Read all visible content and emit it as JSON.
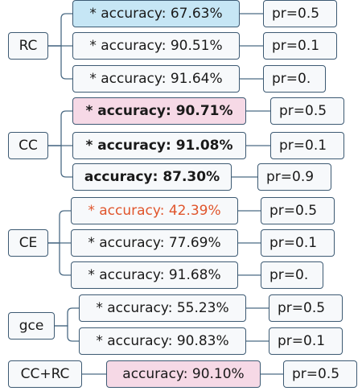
{
  "groups": [
    {
      "name": "RC",
      "items": [
        {
          "acc": "* accuracy: 67.63%",
          "pr": "pr=0.5",
          "bg": "blue"
        },
        {
          "acc": "* accuracy: 90.51%",
          "pr": "pr=0.1"
        },
        {
          "acc": "* accuracy: 91.64%",
          "pr": "pr=0."
        }
      ]
    },
    {
      "name": "CC",
      "items": [
        {
          "acc": "* accuracy: 90.71%",
          "pr": "pr=0.5",
          "bold": true,
          "bg": "pink"
        },
        {
          "acc": "* accuracy: 91.08%",
          "pr": "pr=0.1",
          "bold": true
        },
        {
          "acc": "accuracy: 87.30%",
          "pr": "pr=0.9",
          "bold": true
        }
      ]
    },
    {
      "name": "CE",
      "items": [
        {
          "acc": "* accuracy: 42.39%",
          "pr": "pr=0.5",
          "color": "#e0552c"
        },
        {
          "acc": "* accuracy: 77.69%",
          "pr": "pr=0.1"
        },
        {
          "acc": "* accuracy: 91.68%",
          "pr": "pr=0."
        }
      ]
    },
    {
      "name": "gce",
      "items": [
        {
          "acc": "* accuracy: 55.23%",
          "pr": "pr=0.5"
        },
        {
          "acc": "* accuracy: 90.83%",
          "pr": "pr=0.1"
        }
      ]
    },
    {
      "name": "CC+RC",
      "items": [
        {
          "acc": "accuracy: 90.10%",
          "pr": "pr=0.5",
          "bg": "pink"
        }
      ]
    }
  ],
  "colors": {
    "node_border": "#3d5a73",
    "connector": "#4a6a84",
    "highlight_blue": "#c6e6f5",
    "highlight_pink": "#f6d9e6",
    "alert_text": "#e0552c"
  }
}
